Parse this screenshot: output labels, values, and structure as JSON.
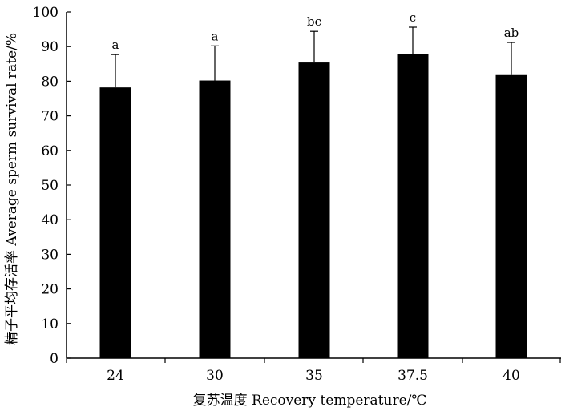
{
  "chart_data": {
    "type": "bar",
    "categories": [
      "24",
      "30",
      "35",
      "37.5",
      "40"
    ],
    "series": [
      {
        "values": [
          78.2,
          80.2,
          85.4,
          87.8,
          82.0
        ],
        "error": [
          9.5,
          10.0,
          9.0,
          7.8,
          9.2
        ],
        "significance": [
          "a",
          "a",
          "bc",
          "c",
          "ab"
        ]
      }
    ],
    "xlabel": "复苏温度 Recovery temperature/℃",
    "ylabel": "精子平均存活率 Average sperm survival rate/%",
    "ylim": [
      0,
      100
    ],
    "yticks": [
      0,
      10,
      20,
      30,
      40,
      50,
      60,
      70,
      80,
      90,
      100
    ],
    "grid": false,
    "legend": "none",
    "bar_color": "#000000"
  }
}
